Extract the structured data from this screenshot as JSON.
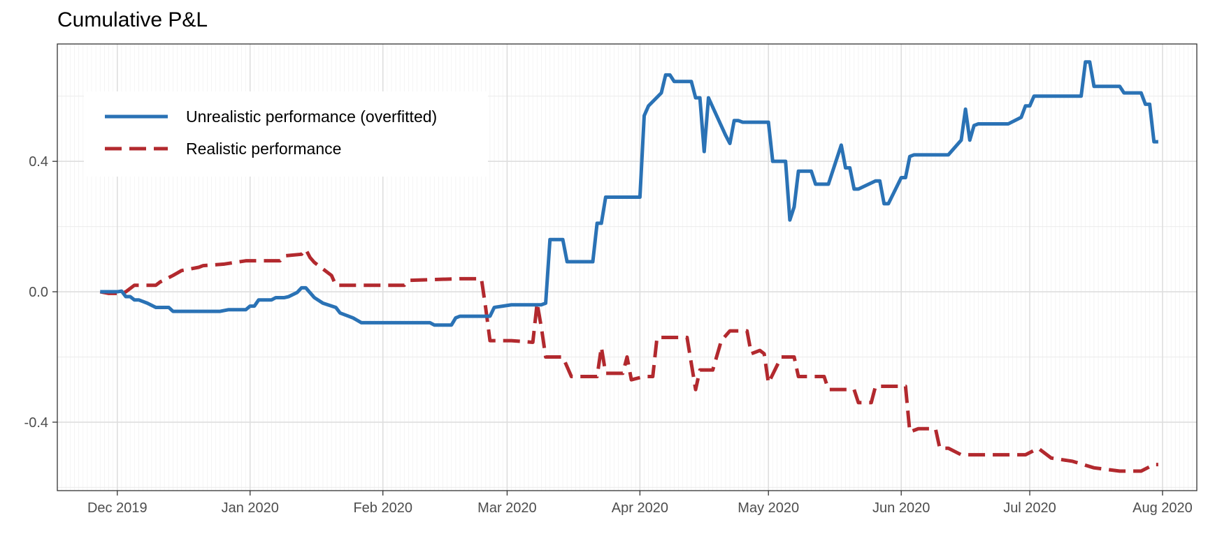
{
  "chart_data": {
    "type": "line",
    "title": "Cumulative P&L",
    "xlabel": "",
    "ylabel": "",
    "xlim": [
      "2019-11-17",
      "2020-08-09"
    ],
    "ylim": [
      -0.61,
      0.76
    ],
    "x_ticks": [
      {
        "date": "2019-12-01",
        "label": "Dec 2019"
      },
      {
        "date": "2020-01-01",
        "label": "Jan 2020"
      },
      {
        "date": "2020-02-01",
        "label": "Feb 2020"
      },
      {
        "date": "2020-03-01",
        "label": "Mar 2020"
      },
      {
        "date": "2020-04-01",
        "label": "Apr 2020"
      },
      {
        "date": "2020-05-01",
        "label": "May 2020"
      },
      {
        "date": "2020-06-01",
        "label": "Jun 2020"
      },
      {
        "date": "2020-07-01",
        "label": "Jul 2020"
      },
      {
        "date": "2020-08-01",
        "label": "Aug 2020"
      }
    ],
    "y_ticks": [
      {
        "value": -0.4,
        "label": "-0.4"
      },
      {
        "value": 0.0,
        "label": "0.0"
      },
      {
        "value": 0.4,
        "label": "0.4"
      }
    ],
    "grid": true,
    "legend_position": "top-left",
    "series": [
      {
        "name": "Unrealistic performance (overfitted)",
        "color": "#2a72b5",
        "dash": "solid",
        "points": [
          [
            "2019-11-27",
            0.0
          ],
          [
            "2019-12-01",
            0.0
          ],
          [
            "2019-12-02",
            0.002
          ],
          [
            "2019-12-03",
            -0.015
          ],
          [
            "2019-12-04",
            -0.015
          ],
          [
            "2019-12-05",
            -0.025
          ],
          [
            "2019-12-06",
            -0.025
          ],
          [
            "2019-12-08",
            -0.035
          ],
          [
            "2019-12-10",
            -0.048
          ],
          [
            "2019-12-12",
            -0.048
          ],
          [
            "2019-12-13",
            -0.048
          ],
          [
            "2019-12-14",
            -0.06
          ],
          [
            "2019-12-20",
            -0.06
          ],
          [
            "2019-12-25",
            -0.06
          ],
          [
            "2019-12-27",
            -0.055
          ],
          [
            "2019-12-31",
            -0.055
          ],
          [
            "2020-01-01",
            -0.044
          ],
          [
            "2020-01-02",
            -0.044
          ],
          [
            "2020-01-03",
            -0.025
          ],
          [
            "2020-01-06",
            -0.025
          ],
          [
            "2020-01-07",
            -0.018
          ],
          [
            "2020-01-09",
            -0.018
          ],
          [
            "2020-01-10",
            -0.015
          ],
          [
            "2020-01-12",
            -0.002
          ],
          [
            "2020-01-13",
            0.012
          ],
          [
            "2020-01-14",
            0.012
          ],
          [
            "2020-01-16",
            -0.018
          ],
          [
            "2020-01-18",
            -0.035
          ],
          [
            "2020-01-21",
            -0.048
          ],
          [
            "2020-01-22",
            -0.065
          ],
          [
            "2020-01-25",
            -0.08
          ],
          [
            "2020-01-27",
            -0.095
          ],
          [
            "2020-02-01",
            -0.095
          ],
          [
            "2020-02-12",
            -0.095
          ],
          [
            "2020-02-13",
            -0.102
          ],
          [
            "2020-02-17",
            -0.102
          ],
          [
            "2020-02-18",
            -0.08
          ],
          [
            "2020-02-19",
            -0.075
          ],
          [
            "2020-02-26",
            -0.075
          ],
          [
            "2020-02-27",
            -0.048
          ],
          [
            "2020-03-02",
            -0.04
          ],
          [
            "2020-03-09",
            -0.04
          ],
          [
            "2020-03-10",
            -0.035
          ],
          [
            "2020-03-11",
            0.16
          ],
          [
            "2020-03-14",
            0.16
          ],
          [
            "2020-03-15",
            0.092
          ],
          [
            "2020-03-21",
            0.092
          ],
          [
            "2020-03-22",
            0.21
          ],
          [
            "2020-03-23",
            0.21
          ],
          [
            "2020-03-24",
            0.29
          ],
          [
            "2020-04-01",
            0.29
          ],
          [
            "2020-04-02",
            0.54
          ],
          [
            "2020-04-03",
            0.57
          ],
          [
            "2020-04-06",
            0.61
          ],
          [
            "2020-04-07",
            0.665
          ],
          [
            "2020-04-08",
            0.665
          ],
          [
            "2020-04-09",
            0.645
          ],
          [
            "2020-04-13",
            0.645
          ],
          [
            "2020-04-14",
            0.595
          ],
          [
            "2020-04-15",
            0.595
          ],
          [
            "2020-04-16",
            0.43
          ],
          [
            "2020-04-17",
            0.595
          ],
          [
            "2020-04-21",
            0.48
          ],
          [
            "2020-04-22",
            0.455
          ],
          [
            "2020-04-23",
            0.525
          ],
          [
            "2020-04-24",
            0.525
          ],
          [
            "2020-04-25",
            0.52
          ],
          [
            "2020-05-01",
            0.52
          ],
          [
            "2020-05-02",
            0.4
          ],
          [
            "2020-05-05",
            0.4
          ],
          [
            "2020-05-06",
            0.22
          ],
          [
            "2020-05-07",
            0.26
          ],
          [
            "2020-05-08",
            0.37
          ],
          [
            "2020-05-11",
            0.37
          ],
          [
            "2020-05-12",
            0.33
          ],
          [
            "2020-05-15",
            0.33
          ],
          [
            "2020-05-18",
            0.45
          ],
          [
            "2020-05-19",
            0.38
          ],
          [
            "2020-05-20",
            0.38
          ],
          [
            "2020-05-21",
            0.315
          ],
          [
            "2020-05-22",
            0.315
          ],
          [
            "2020-05-26",
            0.34
          ],
          [
            "2020-05-27",
            0.34
          ],
          [
            "2020-05-28",
            0.27
          ],
          [
            "2020-05-29",
            0.27
          ],
          [
            "2020-06-01",
            0.35
          ],
          [
            "2020-06-02",
            0.35
          ],
          [
            "2020-06-03",
            0.415
          ],
          [
            "2020-06-04",
            0.42
          ],
          [
            "2020-06-12",
            0.42
          ],
          [
            "2020-06-15",
            0.465
          ],
          [
            "2020-06-16",
            0.56
          ],
          [
            "2020-06-17",
            0.465
          ],
          [
            "2020-06-18",
            0.51
          ],
          [
            "2020-06-19",
            0.515
          ],
          [
            "2020-06-26",
            0.515
          ],
          [
            "2020-06-29",
            0.535
          ],
          [
            "2020-06-30",
            0.57
          ],
          [
            "2020-07-01",
            0.57
          ],
          [
            "2020-07-02",
            0.6
          ],
          [
            "2020-07-13",
            0.6
          ],
          [
            "2020-07-14",
            0.705
          ],
          [
            "2020-07-15",
            0.705
          ],
          [
            "2020-07-16",
            0.63
          ],
          [
            "2020-07-22",
            0.63
          ],
          [
            "2020-07-23",
            0.61
          ],
          [
            "2020-07-27",
            0.61
          ],
          [
            "2020-07-28",
            0.575
          ],
          [
            "2020-07-29",
            0.575
          ],
          [
            "2020-07-30",
            0.46
          ],
          [
            "2020-07-31",
            0.46
          ]
        ]
      },
      {
        "name": "Realistic performance",
        "color": "#b2292e",
        "dash": "dashed",
        "points": [
          [
            "2019-11-27",
            0.0
          ],
          [
            "2019-11-29",
            -0.005
          ],
          [
            "2019-12-02",
            -0.005
          ],
          [
            "2019-12-03",
            0.0
          ],
          [
            "2019-12-05",
            0.02
          ],
          [
            "2019-12-10",
            0.02
          ],
          [
            "2019-12-11",
            0.03
          ],
          [
            "2019-12-14",
            0.05
          ],
          [
            "2019-12-16",
            0.065
          ],
          [
            "2019-12-20",
            0.075
          ],
          [
            "2019-12-21",
            0.08
          ],
          [
            "2019-12-26",
            0.085
          ],
          [
            "2019-12-31",
            0.095
          ],
          [
            "2020-01-08",
            0.095
          ],
          [
            "2020-01-09",
            0.11
          ],
          [
            "2020-01-13",
            0.115
          ],
          [
            "2020-01-14",
            0.13
          ],
          [
            "2020-01-15",
            0.105
          ],
          [
            "2020-01-16",
            0.09
          ],
          [
            "2020-01-18",
            0.07
          ],
          [
            "2020-01-20",
            0.05
          ],
          [
            "2020-01-21",
            0.02
          ],
          [
            "2020-01-29",
            0.02
          ],
          [
            "2020-02-06",
            0.02
          ],
          [
            "2020-02-07",
            0.035
          ],
          [
            "2020-02-19",
            0.04
          ],
          [
            "2020-02-24",
            0.04
          ],
          [
            "2020-02-25",
            -0.05
          ],
          [
            "2020-02-26",
            -0.15
          ],
          [
            "2020-03-02",
            -0.15
          ],
          [
            "2020-03-07",
            -0.155
          ],
          [
            "2020-03-08",
            -0.035
          ],
          [
            "2020-03-09",
            -0.11
          ],
          [
            "2020-03-10",
            -0.2
          ],
          [
            "2020-03-14",
            -0.2
          ],
          [
            "2020-03-16",
            -0.26
          ],
          [
            "2020-03-22",
            -0.26
          ],
          [
            "2020-03-23",
            -0.17
          ],
          [
            "2020-03-24",
            -0.25
          ],
          [
            "2020-03-28",
            -0.25
          ],
          [
            "2020-03-29",
            -0.2
          ],
          [
            "2020-03-30",
            -0.27
          ],
          [
            "2020-04-02",
            -0.26
          ],
          [
            "2020-04-04",
            -0.26
          ],
          [
            "2020-04-05",
            -0.14
          ],
          [
            "2020-04-12",
            -0.14
          ],
          [
            "2020-04-14",
            -0.3
          ],
          [
            "2020-04-15",
            -0.24
          ],
          [
            "2020-04-18",
            -0.24
          ],
          [
            "2020-04-20",
            -0.15
          ],
          [
            "2020-04-22",
            -0.12
          ],
          [
            "2020-04-26",
            -0.12
          ],
          [
            "2020-04-27",
            -0.19
          ],
          [
            "2020-04-29",
            -0.18
          ],
          [
            "2020-04-30",
            -0.19
          ],
          [
            "2020-05-01",
            -0.28
          ],
          [
            "2020-05-04",
            -0.2
          ],
          [
            "2020-05-07",
            -0.2
          ],
          [
            "2020-05-08",
            -0.26
          ],
          [
            "2020-05-14",
            -0.26
          ],
          [
            "2020-05-15",
            -0.3
          ],
          [
            "2020-05-21",
            -0.3
          ],
          [
            "2020-05-22",
            -0.34
          ],
          [
            "2020-05-25",
            -0.34
          ],
          [
            "2020-05-26",
            -0.29
          ],
          [
            "2020-06-02",
            -0.29
          ],
          [
            "2020-06-03",
            -0.43
          ],
          [
            "2020-06-05",
            -0.42
          ],
          [
            "2020-06-09",
            -0.42
          ],
          [
            "2020-06-10",
            -0.48
          ],
          [
            "2020-06-12",
            -0.48
          ],
          [
            "2020-06-15",
            -0.5
          ],
          [
            "2020-06-22",
            -0.5
          ],
          [
            "2020-06-30",
            -0.5
          ],
          [
            "2020-07-03",
            -0.48
          ],
          [
            "2020-07-06",
            -0.51
          ],
          [
            "2020-07-11",
            -0.52
          ],
          [
            "2020-07-16",
            -0.54
          ],
          [
            "2020-07-22",
            -0.55
          ],
          [
            "2020-07-27",
            -0.55
          ],
          [
            "2020-07-30",
            -0.53
          ],
          [
            "2020-07-31",
            -0.53
          ]
        ]
      }
    ]
  }
}
